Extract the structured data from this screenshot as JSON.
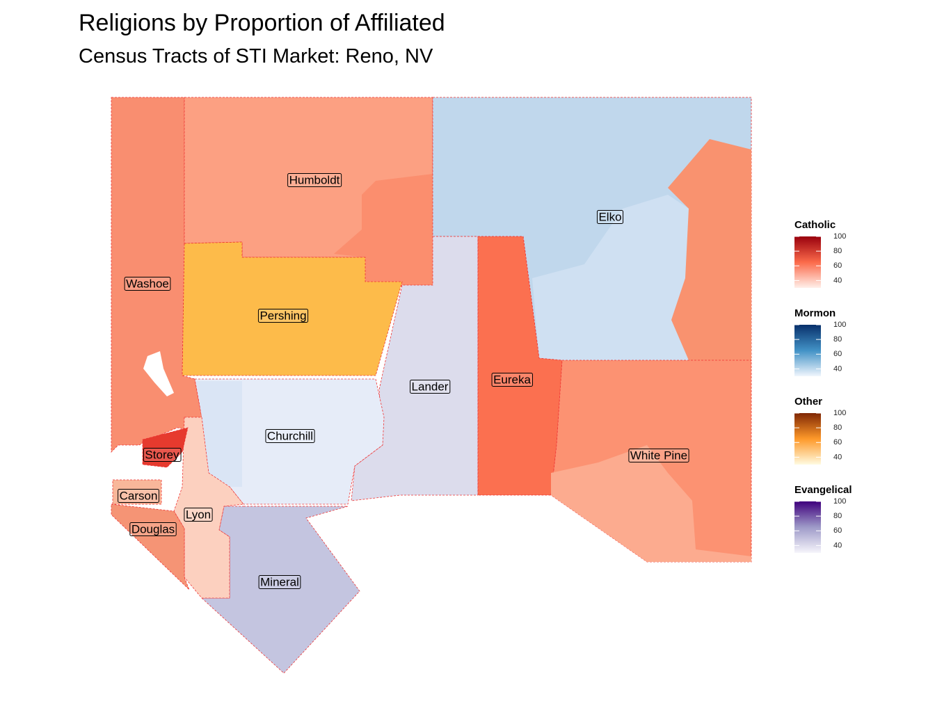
{
  "title": "Religions by Proportion of Affiliated",
  "subtitle": "Census Tracts of STI Market: Reno, NV",
  "map": {
    "regions": [
      {
        "label": "Humboldt"
      },
      {
        "label": "Elko"
      },
      {
        "label": "Washoe"
      },
      {
        "label": "Pershing"
      },
      {
        "label": "Lander"
      },
      {
        "label": "Eureka"
      },
      {
        "label": "Churchill"
      },
      {
        "label": "Storey"
      },
      {
        "label": "White Pine"
      },
      {
        "label": "Carson"
      },
      {
        "label": "Lyon"
      },
      {
        "label": "Douglas"
      },
      {
        "label": "Mineral"
      }
    ]
  },
  "legends": [
    {
      "title": "Catholic",
      "colors": [
        "#fff0ea",
        "#fb6a4a",
        "#99000d"
      ],
      "limits": [
        30,
        100
      ],
      "ticks": [
        40,
        60,
        80,
        100
      ]
    },
    {
      "title": "Mormon",
      "colors": [
        "#f0f6fd",
        "#4292c6",
        "#08306b"
      ],
      "limits": [
        30,
        100
      ],
      "ticks": [
        40,
        60,
        80,
        100
      ]
    },
    {
      "title": "Other",
      "colors": [
        "#fffbe0",
        "#fe9929",
        "#7f2704"
      ],
      "limits": [
        30,
        100
      ],
      "ticks": [
        40,
        60,
        80,
        100
      ]
    },
    {
      "title": "Evangelical",
      "colors": [
        "#f6f5fb",
        "#9e9ac8",
        "#3f007d"
      ],
      "limits": [
        30,
        100
      ],
      "ticks": [
        40,
        60,
        80,
        100
      ]
    }
  ]
}
